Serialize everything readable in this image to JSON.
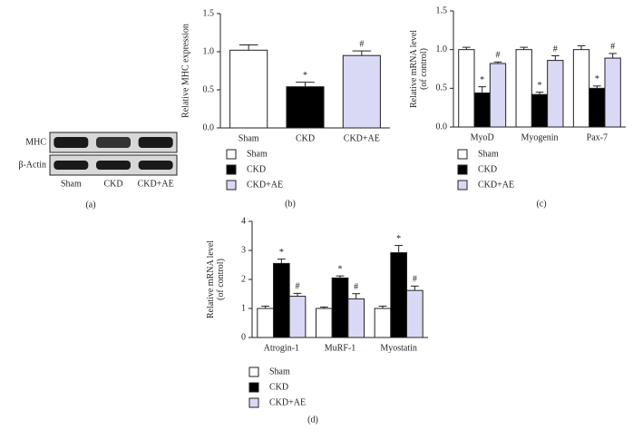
{
  "chart_data": [
    {
      "type": "blot",
      "rows": [
        "MHC",
        "β-Actin"
      ],
      "categories": [
        "Sham",
        "CKD",
        "CKD+AE"
      ],
      "label": "(a)"
    },
    {
      "type": "bar",
      "ylabel": [
        "Relative MHC expression"
      ],
      "categories": [
        "Sham",
        "CKD",
        "CKD+AE"
      ],
      "values": [
        1.02,
        0.54,
        0.95
      ],
      "errors": [
        0.07,
        0.06,
        0.06
      ],
      "markers": [
        null,
        "*",
        "#"
      ],
      "colors": [
        "#ffffff",
        "#000000",
        "#d9d9f5"
      ],
      "legend": [
        "Sham",
        "CKD",
        "CKD+AE"
      ],
      "ylim": [
        0,
        1.5
      ],
      "yticks": [
        {
          "value": 0,
          "label": "0.0"
        },
        0.5,
        {
          "value": 1,
          "label": "1.0"
        },
        1.5
      ],
      "label": "(b)"
    },
    {
      "type": "grouped_bar",
      "ylabel": [
        "Relative mRNA level",
        "(of control)"
      ],
      "categories": [
        "MyoD",
        "Myogenin",
        "Pax-7"
      ],
      "series": [
        {
          "name": "Sham",
          "color": "#ffffff",
          "values": [
            1.0,
            1.0,
            1.0
          ],
          "errors": [
            0.03,
            0.03,
            0.05
          ]
        },
        {
          "name": "CKD",
          "color": "#000000",
          "values": [
            0.44,
            0.42,
            0.5
          ],
          "errors": [
            0.08,
            0.03,
            0.03
          ],
          "markers": [
            "*",
            "*",
            "*"
          ]
        },
        {
          "name": "CKD+AE",
          "color": "#d9d9f5",
          "values": [
            0.82,
            0.86,
            0.89
          ],
          "errors": [
            0.02,
            0.06,
            0.06
          ],
          "markers": [
            "#",
            "#",
            "#"
          ]
        }
      ],
      "ylim": [
        0,
        1.5
      ],
      "yticks": [
        {
          "value": 0,
          "label": "0.0"
        },
        0.5,
        {
          "value": 1,
          "label": "1.0"
        },
        1.5
      ],
      "label": "(c)"
    },
    {
      "type": "grouped_bar",
      "ylabel": [
        "Relative mRNA level",
        "(of control)"
      ],
      "categories": [
        "Atrogin-1",
        "MuRF-1",
        "Myostatin"
      ],
      "series": [
        {
          "name": "Sham",
          "color": "#ffffff",
          "values": [
            1.0,
            1.0,
            1.0
          ],
          "errors": [
            0.08,
            0.05,
            0.08
          ]
        },
        {
          "name": "CKD",
          "color": "#000000",
          "values": [
            2.55,
            2.05,
            2.92
          ],
          "errors": [
            0.15,
            0.07,
            0.25
          ],
          "markers": [
            "*",
            "*",
            "*"
          ]
        },
        {
          "name": "CKD+AE",
          "color": "#d9d9f5",
          "values": [
            1.42,
            1.33,
            1.62
          ],
          "errors": [
            0.1,
            0.18,
            0.15
          ],
          "markers": [
            "#",
            "#",
            "#"
          ]
        }
      ],
      "ylim": [
        0,
        4
      ],
      "yticks": [
        0,
        1,
        2,
        3,
        4
      ],
      "label": "(d)"
    }
  ]
}
